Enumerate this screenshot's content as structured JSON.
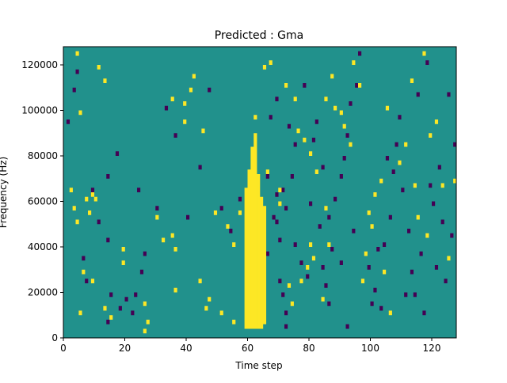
{
  "chart_data": {
    "type": "heatmap",
    "title": "Predicted : Gma",
    "xlabel": "Time step",
    "ylabel": "Frequency (Hz)",
    "xlim": [
      0,
      128
    ],
    "ylim": [
      0,
      128000
    ],
    "x_ticks": [
      0,
      20,
      40,
      60,
      80,
      100,
      120
    ],
    "y_ticks": [
      0,
      20000,
      40000,
      60000,
      80000,
      100000,
      120000
    ],
    "x_tick_labels": [
      "0",
      "20",
      "40",
      "60",
      "80",
      "100",
      "120"
    ],
    "y_tick_labels": [
      "0",
      "20000",
      "40000",
      "60000",
      "80000",
      "100000",
      "120000"
    ],
    "grid": false,
    "colors": {
      "background": "#21918c",
      "high": "#fde725",
      "low": "#440154"
    },
    "n_time_steps": 128,
    "n_freq_bins": 64,
    "freq_bin_width_hz": 2000,
    "yellow_region": [
      {
        "t": 59,
        "f_range": [
          4000,
          66000
        ]
      },
      {
        "t": 60,
        "f_range": [
          4000,
          74000
        ]
      },
      {
        "t": 61,
        "f_range": [
          4000,
          84000
        ]
      },
      {
        "t": 62,
        "f_range": [
          4000,
          90000
        ]
      },
      {
        "t": 63,
        "f_range": [
          4000,
          72000
        ]
      },
      {
        "t": 64,
        "f_range": [
          4000,
          62000
        ]
      },
      {
        "t": 65,
        "f_range": [
          6000,
          58000
        ]
      }
    ],
    "high_cells": [
      [
        4,
        124000
      ],
      [
        5,
        98000
      ],
      [
        11,
        118000
      ],
      [
        13,
        112000
      ],
      [
        2,
        64000
      ],
      [
        3,
        56000
      ],
      [
        4,
        50000
      ],
      [
        7,
        60000
      ],
      [
        9,
        62000
      ],
      [
        10,
        60000
      ],
      [
        8,
        54000
      ],
      [
        6,
        28000
      ],
      [
        9,
        24000
      ],
      [
        5,
        10000
      ],
      [
        13,
        12000
      ],
      [
        15,
        8000
      ],
      [
        19,
        38000
      ],
      [
        19,
        32000
      ],
      [
        26,
        14000
      ],
      [
        27,
        6000
      ],
      [
        26,
        2000
      ],
      [
        30,
        52000
      ],
      [
        32,
        42000
      ],
      [
        35,
        44000
      ],
      [
        36,
        38000
      ],
      [
        36,
        20000
      ],
      [
        39,
        94000
      ],
      [
        41,
        108000
      ],
      [
        44,
        24000
      ],
      [
        47,
        16000
      ],
      [
        46,
        12000
      ],
      [
        49,
        54000
      ],
      [
        53,
        48000
      ],
      [
        55,
        40000
      ],
      [
        57,
        54000
      ],
      [
        62,
        96000
      ],
      [
        66,
        72000
      ],
      [
        70,
        58000
      ],
      [
        70,
        64000
      ],
      [
        72,
        110000
      ],
      [
        75,
        104000
      ],
      [
        76,
        90000
      ],
      [
        78,
        86000
      ],
      [
        80,
        80000
      ],
      [
        82,
        72000
      ],
      [
        85,
        56000
      ],
      [
        86,
        40000
      ],
      [
        88,
        100000
      ],
      [
        90,
        98000
      ],
      [
        94,
        120000
      ],
      [
        96,
        110000
      ],
      [
        98,
        36000
      ],
      [
        97,
        24000
      ],
      [
        99,
        54000
      ],
      [
        100,
        48000
      ],
      [
        101,
        62000
      ],
      [
        103,
        68000
      ],
      [
        104,
        28000
      ],
      [
        106,
        10000
      ],
      [
        111,
        84000
      ],
      [
        114,
        66000
      ],
      [
        115,
        52000
      ],
      [
        118,
        44000
      ],
      [
        121,
        94000
      ],
      [
        123,
        66000
      ],
      [
        125,
        34000
      ],
      [
        127,
        68000
      ],
      [
        79,
        30000
      ],
      [
        77,
        24000
      ],
      [
        74,
        14000
      ],
      [
        73,
        22000
      ],
      [
        80,
        40000
      ],
      [
        84,
        16000
      ],
      [
        81,
        34000
      ],
      [
        55,
        6000
      ],
      [
        51,
        10000
      ],
      [
        45,
        90000
      ],
      [
        39,
        102000
      ],
      [
        42,
        114000
      ],
      [
        35,
        104000
      ],
      [
        65,
        118000
      ],
      [
        67,
        120000
      ],
      [
        85,
        104000
      ],
      [
        87,
        114000
      ],
      [
        91,
        92000
      ],
      [
        93,
        84000
      ],
      [
        105,
        100000
      ],
      [
        109,
        76000
      ],
      [
        113,
        112000
      ],
      [
        117,
        124000
      ],
      [
        119,
        88000
      ]
    ],
    "low_cells": [
      [
        4,
        116000
      ],
      [
        3,
        108000
      ],
      [
        1,
        94000
      ],
      [
        9,
        64000
      ],
      [
        14,
        70000
      ],
      [
        17,
        80000
      ],
      [
        11,
        50000
      ],
      [
        14,
        42000
      ],
      [
        6,
        34000
      ],
      [
        7,
        24000
      ],
      [
        15,
        18000
      ],
      [
        14,
        6000
      ],
      [
        18,
        12000
      ],
      [
        20,
        16000
      ],
      [
        22,
        10000
      ],
      [
        23,
        18000
      ],
      [
        25,
        28000
      ],
      [
        26,
        36000
      ],
      [
        24,
        64000
      ],
      [
        30,
        56000
      ],
      [
        33,
        100000
      ],
      [
        36,
        88000
      ],
      [
        40,
        52000
      ],
      [
        44,
        74000
      ],
      [
        47,
        108000
      ],
      [
        51,
        56000
      ],
      [
        54,
        46000
      ],
      [
        57,
        60000
      ],
      [
        60,
        44000
      ],
      [
        66,
        36000
      ],
      [
        69,
        50000
      ],
      [
        70,
        42000
      ],
      [
        71,
        64000
      ],
      [
        72,
        56000
      ],
      [
        70,
        24000
      ],
      [
        71,
        18000
      ],
      [
        74,
        70000
      ],
      [
        72,
        10000
      ],
      [
        72,
        4000
      ],
      [
        75,
        40000
      ],
      [
        77,
        32000
      ],
      [
        79,
        26000
      ],
      [
        81,
        86000
      ],
      [
        82,
        94000
      ],
      [
        83,
        48000
      ],
      [
        84,
        30000
      ],
      [
        85,
        22000
      ],
      [
        86,
        14000
      ],
      [
        87,
        38000
      ],
      [
        88,
        60000
      ],
      [
        90,
        70000
      ],
      [
        91,
        78000
      ],
      [
        92,
        88000
      ],
      [
        93,
        102000
      ],
      [
        95,
        110000
      ],
      [
        96,
        124000
      ],
      [
        99,
        30000
      ],
      [
        101,
        20000
      ],
      [
        103,
        12000
      ],
      [
        104,
        40000
      ],
      [
        106,
        52000
      ],
      [
        107,
        72000
      ],
      [
        108,
        84000
      ],
      [
        110,
        64000
      ],
      [
        112,
        46000
      ],
      [
        113,
        28000
      ],
      [
        114,
        18000
      ],
      [
        116,
        36000
      ],
      [
        117,
        10000
      ],
      [
        120,
        58000
      ],
      [
        121,
        30000
      ],
      [
        122,
        74000
      ],
      [
        124,
        24000
      ],
      [
        125,
        106000
      ],
      [
        126,
        44000
      ],
      [
        127,
        84000
      ],
      [
        66,
        70000
      ],
      [
        68,
        52000
      ],
      [
        69,
        62000
      ],
      [
        67,
        96000
      ],
      [
        69,
        104000
      ],
      [
        73,
        92000
      ],
      [
        75,
        84000
      ],
      [
        78,
        110000
      ],
      [
        80,
        58000
      ],
      [
        84,
        74000
      ],
      [
        86,
        52000
      ],
      [
        90,
        32000
      ],
      [
        92,
        4000
      ],
      [
        94,
        46000
      ],
      [
        100,
        14000
      ],
      [
        102,
        38000
      ],
      [
        105,
        78000
      ],
      [
        109,
        96000
      ],
      [
        111,
        18000
      ],
      [
        115,
        106000
      ],
      [
        118,
        120000
      ],
      [
        119,
        66000
      ],
      [
        123,
        50000
      ]
    ]
  }
}
